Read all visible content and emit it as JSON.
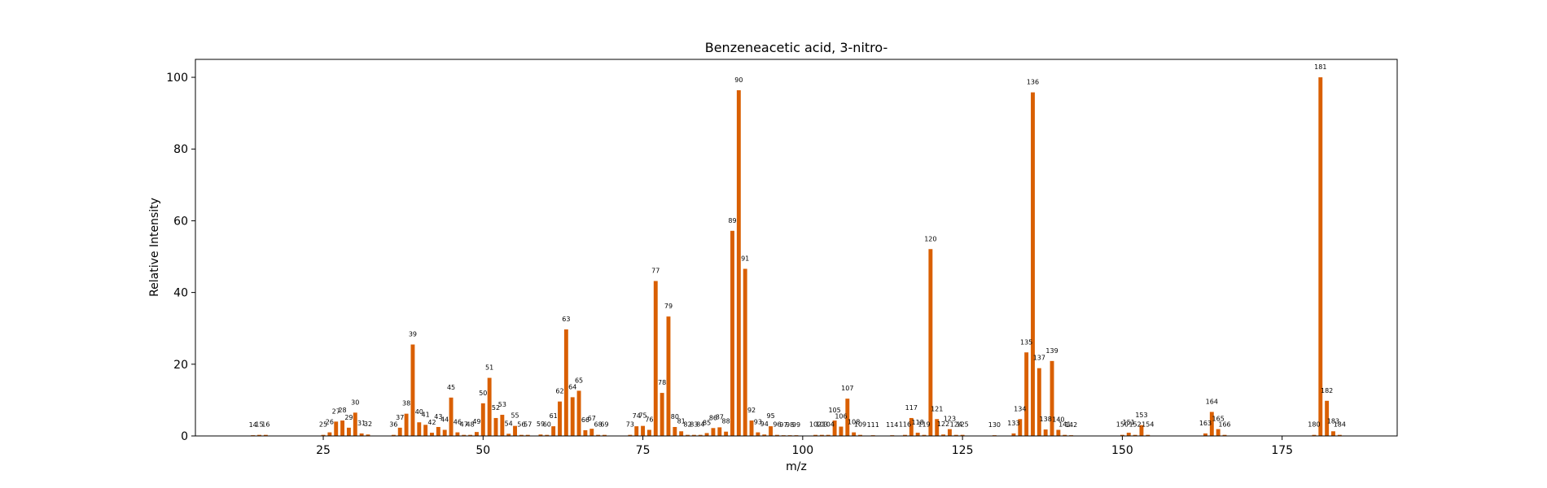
{
  "chart_data": {
    "type": "bar",
    "title": "Benzeneacetic acid, 3-nitro-",
    "xlabel": "m/z",
    "ylabel": "Relative Intensity",
    "xlim": [
      5,
      193
    ],
    "ylim": [
      0,
      105
    ],
    "xticks": [
      25,
      50,
      75,
      100,
      125,
      150,
      175
    ],
    "yticks": [
      0,
      20,
      40,
      60,
      80,
      100
    ],
    "grid": false,
    "bar_color": "#d95f02",
    "peaks": [
      {
        "mz": 14,
        "intensity": 0.2
      },
      {
        "mz": 15,
        "intensity": 0.3
      },
      {
        "mz": 16,
        "intensity": 0.3
      },
      {
        "mz": 25,
        "intensity": 0.3
      },
      {
        "mz": 26,
        "intensity": 1.0
      },
      {
        "mz": 27,
        "intensity": 4.0
      },
      {
        "mz": 28,
        "intensity": 4.3
      },
      {
        "mz": 29,
        "intensity": 2.3
      },
      {
        "mz": 30,
        "intensity": 6.5
      },
      {
        "mz": 31,
        "intensity": 0.7
      },
      {
        "mz": 32,
        "intensity": 0.4
      },
      {
        "mz": 36,
        "intensity": 0.3
      },
      {
        "mz": 37,
        "intensity": 2.3
      },
      {
        "mz": 38,
        "intensity": 6.2
      },
      {
        "mz": 39,
        "intensity": 25.5
      },
      {
        "mz": 40,
        "intensity": 3.8
      },
      {
        "mz": 41,
        "intensity": 3.1
      },
      {
        "mz": 42,
        "intensity": 0.9
      },
      {
        "mz": 43,
        "intensity": 2.5
      },
      {
        "mz": 44,
        "intensity": 1.7
      },
      {
        "mz": 45,
        "intensity": 10.7
      },
      {
        "mz": 46,
        "intensity": 1.0
      },
      {
        "mz": 47,
        "intensity": 0.3
      },
      {
        "mz": 48,
        "intensity": 0.3
      },
      {
        "mz": 49,
        "intensity": 1.1
      },
      {
        "mz": 50,
        "intensity": 9.1
      },
      {
        "mz": 51,
        "intensity": 16.2
      },
      {
        "mz": 52,
        "intensity": 5.0
      },
      {
        "mz": 53,
        "intensity": 5.9
      },
      {
        "mz": 54,
        "intensity": 0.6
      },
      {
        "mz": 55,
        "intensity": 2.8
      },
      {
        "mz": 56,
        "intensity": 0.3
      },
      {
        "mz": 57,
        "intensity": 0.3
      },
      {
        "mz": 59,
        "intensity": 0.4
      },
      {
        "mz": 60,
        "intensity": 0.3
      },
      {
        "mz": 61,
        "intensity": 2.7
      },
      {
        "mz": 62,
        "intensity": 9.6
      },
      {
        "mz": 63,
        "intensity": 29.7
      },
      {
        "mz": 64,
        "intensity": 10.8
      },
      {
        "mz": 65,
        "intensity": 12.6
      },
      {
        "mz": 66,
        "intensity": 1.6
      },
      {
        "mz": 67,
        "intensity": 2.0
      },
      {
        "mz": 68,
        "intensity": 0.3
      },
      {
        "mz": 69,
        "intensity": 0.3
      },
      {
        "mz": 73,
        "intensity": 0.3
      },
      {
        "mz": 74,
        "intensity": 2.7
      },
      {
        "mz": 75,
        "intensity": 2.8
      },
      {
        "mz": 76,
        "intensity": 1.7
      },
      {
        "mz": 77,
        "intensity": 43.2
      },
      {
        "mz": 78,
        "intensity": 12.0
      },
      {
        "mz": 79,
        "intensity": 33.3
      },
      {
        "mz": 80,
        "intensity": 2.5
      },
      {
        "mz": 81,
        "intensity": 1.3
      },
      {
        "mz": 82,
        "intensity": 0.3
      },
      {
        "mz": 83,
        "intensity": 0.3
      },
      {
        "mz": 84,
        "intensity": 0.3
      },
      {
        "mz": 85,
        "intensity": 0.8
      },
      {
        "mz": 86,
        "intensity": 2.2
      },
      {
        "mz": 87,
        "intensity": 2.4
      },
      {
        "mz": 88,
        "intensity": 1.2
      },
      {
        "mz": 89,
        "intensity": 57.2
      },
      {
        "mz": 90,
        "intensity": 96.4
      },
      {
        "mz": 91,
        "intensity": 46.6
      },
      {
        "mz": 92,
        "intensity": 4.3
      },
      {
        "mz": 93,
        "intensity": 1.0
      },
      {
        "mz": 94,
        "intensity": 0.4
      },
      {
        "mz": 95,
        "intensity": 2.7
      },
      {
        "mz": 96,
        "intensity": 0.3
      },
      {
        "mz": 97,
        "intensity": 0.2
      },
      {
        "mz": 98,
        "intensity": 0.2
      },
      {
        "mz": 99,
        "intensity": 0.2
      },
      {
        "mz": 102,
        "intensity": 0.3
      },
      {
        "mz": 103,
        "intensity": 0.3
      },
      {
        "mz": 104,
        "intensity": 0.3
      },
      {
        "mz": 105,
        "intensity": 4.3
      },
      {
        "mz": 106,
        "intensity": 2.6
      },
      {
        "mz": 107,
        "intensity": 10.4
      },
      {
        "mz": 108,
        "intensity": 1.0
      },
      {
        "mz": 109,
        "intensity": 0.3
      },
      {
        "mz": 111,
        "intensity": 0.2
      },
      {
        "mz": 114,
        "intensity": 0.2
      },
      {
        "mz": 116,
        "intensity": 0.3
      },
      {
        "mz": 117,
        "intensity": 5.0
      },
      {
        "mz": 118,
        "intensity": 0.9
      },
      {
        "mz": 119,
        "intensity": 0.3
      },
      {
        "mz": 120,
        "intensity": 52.1
      },
      {
        "mz": 121,
        "intensity": 4.7
      },
      {
        "mz": 122,
        "intensity": 0.4
      },
      {
        "mz": 123,
        "intensity": 1.9
      },
      {
        "mz": 124,
        "intensity": 0.3
      },
      {
        "mz": 125,
        "intensity": 0.3
      },
      {
        "mz": 130,
        "intensity": 0.2
      },
      {
        "mz": 133,
        "intensity": 0.7
      },
      {
        "mz": 134,
        "intensity": 4.7
      },
      {
        "mz": 135,
        "intensity": 23.3
      },
      {
        "mz": 136,
        "intensity": 95.8
      },
      {
        "mz": 137,
        "intensity": 18.9
      },
      {
        "mz": 138,
        "intensity": 1.8
      },
      {
        "mz": 139,
        "intensity": 20.9
      },
      {
        "mz": 140,
        "intensity": 1.7
      },
      {
        "mz": 141,
        "intensity": 0.3
      },
      {
        "mz": 142,
        "intensity": 0.2
      },
      {
        "mz": 150,
        "intensity": 0.3
      },
      {
        "mz": 151,
        "intensity": 0.9
      },
      {
        "mz": 152,
        "intensity": 0.3
      },
      {
        "mz": 153,
        "intensity": 3.0
      },
      {
        "mz": 154,
        "intensity": 0.3
      },
      {
        "mz": 163,
        "intensity": 0.7
      },
      {
        "mz": 164,
        "intensity": 6.7
      },
      {
        "mz": 165,
        "intensity": 1.9
      },
      {
        "mz": 166,
        "intensity": 0.3
      },
      {
        "mz": 180,
        "intensity": 0.3
      },
      {
        "mz": 181,
        "intensity": 100.0
      },
      {
        "mz": 182,
        "intensity": 9.8
      },
      {
        "mz": 183,
        "intensity": 1.3
      },
      {
        "mz": 184,
        "intensity": 0.3
      }
    ]
  }
}
